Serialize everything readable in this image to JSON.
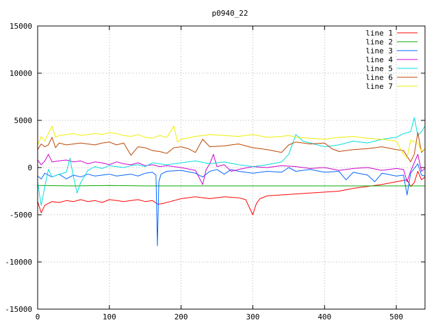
{
  "chart_data": {
    "type": "line",
    "title": "p0940_22",
    "xlabel": "",
    "ylabel": "",
    "xlim": [
      0,
      540
    ],
    "ylim": [
      -15000,
      15000
    ],
    "xticks": [
      0,
      100,
      200,
      300,
      400,
      500
    ],
    "yticks": [
      -15000,
      -10000,
      -5000,
      0,
      5000,
      10000,
      15000
    ],
    "grid": true,
    "legend_position": "top-right",
    "series": [
      {
        "name": "line 1",
        "color": "#ff0000",
        "points": [
          [
            0,
            -3600
          ],
          [
            5,
            -4800
          ],
          [
            10,
            -4000
          ],
          [
            20,
            -3600
          ],
          [
            30,
            -3700
          ],
          [
            40,
            -3500
          ],
          [
            50,
            -3600
          ],
          [
            60,
            -3400
          ],
          [
            70,
            -3600
          ],
          [
            80,
            -3500
          ],
          [
            90,
            -3700
          ],
          [
            100,
            -3400
          ],
          [
            110,
            -3500
          ],
          [
            120,
            -3600
          ],
          [
            130,
            -3500
          ],
          [
            140,
            -3400
          ],
          [
            150,
            -3600
          ],
          [
            160,
            -3500
          ],
          [
            168,
            -3900
          ],
          [
            175,
            -3800
          ],
          [
            185,
            -3600
          ],
          [
            200,
            -3300
          ],
          [
            220,
            -3100
          ],
          [
            240,
            -3300
          ],
          [
            260,
            -3100
          ],
          [
            280,
            -3200
          ],
          [
            290,
            -3400
          ],
          [
            295,
            -4200
          ],
          [
            300,
            -5000
          ],
          [
            305,
            -3800
          ],
          [
            310,
            -3300
          ],
          [
            320,
            -3000
          ],
          [
            340,
            -2900
          ],
          [
            360,
            -2800
          ],
          [
            380,
            -2700
          ],
          [
            400,
            -2600
          ],
          [
            420,
            -2500
          ],
          [
            440,
            -2200
          ],
          [
            460,
            -2000
          ],
          [
            480,
            -1800
          ],
          [
            500,
            -1500
          ],
          [
            515,
            -1300
          ],
          [
            520,
            -2000
          ],
          [
            525,
            -1600
          ],
          [
            530,
            -400
          ],
          [
            535,
            -1300
          ],
          [
            540,
            -1000
          ]
        ]
      },
      {
        "name": "line 2",
        "color": "#00aa00",
        "points": [
          [
            0,
            -1900
          ],
          [
            50,
            -1950
          ],
          [
            100,
            -1900
          ],
          [
            150,
            -1950
          ],
          [
            200,
            -1950
          ],
          [
            250,
            -1950
          ],
          [
            300,
            -1950
          ],
          [
            350,
            -1950
          ],
          [
            400,
            -1950
          ],
          [
            450,
            -1950
          ],
          [
            500,
            -1950
          ],
          [
            540,
            -1950
          ]
        ]
      },
      {
        "name": "line 3",
        "color": "#0066ff",
        "points": [
          [
            0,
            -900
          ],
          [
            5,
            -1200
          ],
          [
            10,
            -600
          ],
          [
            20,
            -1000
          ],
          [
            30,
            -700
          ],
          [
            40,
            -1200
          ],
          [
            50,
            -800
          ],
          [
            60,
            -1000
          ],
          [
            70,
            -700
          ],
          [
            80,
            -900
          ],
          [
            90,
            -800
          ],
          [
            100,
            -700
          ],
          [
            110,
            -900
          ],
          [
            120,
            -800
          ],
          [
            130,
            -700
          ],
          [
            140,
            -900
          ],
          [
            150,
            -600
          ],
          [
            160,
            -500
          ],
          [
            165,
            -800
          ],
          [
            167,
            -8300
          ],
          [
            169,
            -1500
          ],
          [
            172,
            -700
          ],
          [
            180,
            -400
          ],
          [
            200,
            -300
          ],
          [
            220,
            -600
          ],
          [
            230,
            -1000
          ],
          [
            240,
            -400
          ],
          [
            250,
            -200
          ],
          [
            260,
            -700
          ],
          [
            270,
            -200
          ],
          [
            280,
            -400
          ],
          [
            300,
            -600
          ],
          [
            320,
            -400
          ],
          [
            340,
            -500
          ],
          [
            350,
            0
          ],
          [
            360,
            -400
          ],
          [
            380,
            -200
          ],
          [
            400,
            -500
          ],
          [
            420,
            -400
          ],
          [
            430,
            -1300
          ],
          [
            440,
            -500
          ],
          [
            460,
            -800
          ],
          [
            470,
            -1500
          ],
          [
            480,
            -600
          ],
          [
            500,
            -900
          ],
          [
            510,
            -800
          ],
          [
            515,
            -2900
          ],
          [
            520,
            -600
          ],
          [
            530,
            400
          ],
          [
            535,
            -800
          ],
          [
            540,
            -900
          ]
        ]
      },
      {
        "name": "line 4",
        "color": "#cc00cc",
        "points": [
          [
            0,
            800
          ],
          [
            5,
            300
          ],
          [
            10,
            700
          ],
          [
            15,
            1400
          ],
          [
            20,
            600
          ],
          [
            30,
            700
          ],
          [
            40,
            800
          ],
          [
            50,
            600
          ],
          [
            60,
            700
          ],
          [
            70,
            400
          ],
          [
            80,
            600
          ],
          [
            90,
            500
          ],
          [
            100,
            300
          ],
          [
            110,
            600
          ],
          [
            120,
            400
          ],
          [
            130,
            300
          ],
          [
            140,
            500
          ],
          [
            150,
            200
          ],
          [
            160,
            300
          ],
          [
            170,
            100
          ],
          [
            180,
            200
          ],
          [
            200,
            0
          ],
          [
            220,
            -300
          ],
          [
            230,
            -1800
          ],
          [
            235,
            -200
          ],
          [
            240,
            400
          ],
          [
            245,
            1400
          ],
          [
            250,
            100
          ],
          [
            260,
            300
          ],
          [
            270,
            -400
          ],
          [
            280,
            -200
          ],
          [
            300,
            100
          ],
          [
            320,
            0
          ],
          [
            340,
            200
          ],
          [
            360,
            100
          ],
          [
            380,
            -100
          ],
          [
            400,
            0
          ],
          [
            420,
            -300
          ],
          [
            430,
            -200
          ],
          [
            440,
            -100
          ],
          [
            460,
            0
          ],
          [
            480,
            -300
          ],
          [
            500,
            -100
          ],
          [
            510,
            -200
          ],
          [
            515,
            -1500
          ],
          [
            520,
            -400
          ],
          [
            530,
            1400
          ],
          [
            535,
            -400
          ],
          [
            540,
            -100
          ]
        ]
      },
      {
        "name": "line 5",
        "color": "#00dddd",
        "points": [
          [
            0,
            -1600
          ],
          [
            5,
            -4000
          ],
          [
            10,
            -2000
          ],
          [
            15,
            -200
          ],
          [
            20,
            -1000
          ],
          [
            30,
            -700
          ],
          [
            40,
            -500
          ],
          [
            45,
            1000
          ],
          [
            50,
            -1000
          ],
          [
            55,
            -2700
          ],
          [
            60,
            -1600
          ],
          [
            70,
            -300
          ],
          [
            80,
            100
          ],
          [
            90,
            -100
          ],
          [
            100,
            200
          ],
          [
            110,
            100
          ],
          [
            120,
            0
          ],
          [
            130,
            200
          ],
          [
            140,
            300
          ],
          [
            150,
            100
          ],
          [
            160,
            500
          ],
          [
            170,
            400
          ],
          [
            180,
            300
          ],
          [
            200,
            500
          ],
          [
            220,
            700
          ],
          [
            240,
            400
          ],
          [
            260,
            600
          ],
          [
            280,
            300
          ],
          [
            300,
            100
          ],
          [
            320,
            300
          ],
          [
            340,
            600
          ],
          [
            350,
            1400
          ],
          [
            360,
            3500
          ],
          [
            370,
            2800
          ],
          [
            380,
            2600
          ],
          [
            400,
            2200
          ],
          [
            420,
            2400
          ],
          [
            440,
            2800
          ],
          [
            460,
            2600
          ],
          [
            480,
            3000
          ],
          [
            500,
            3200
          ],
          [
            510,
            3600
          ],
          [
            520,
            3800
          ],
          [
            525,
            5300
          ],
          [
            530,
            3400
          ],
          [
            535,
            3800
          ],
          [
            540,
            4400
          ]
        ]
      },
      {
        "name": "line 6",
        "color": "#bb4400",
        "points": [
          [
            0,
            1900
          ],
          [
            5,
            2500
          ],
          [
            10,
            2200
          ],
          [
            15,
            2400
          ],
          [
            20,
            3200
          ],
          [
            25,
            2100
          ],
          [
            30,
            2600
          ],
          [
            40,
            2400
          ],
          [
            50,
            2500
          ],
          [
            60,
            2600
          ],
          [
            70,
            2500
          ],
          [
            80,
            2400
          ],
          [
            90,
            2600
          ],
          [
            100,
            2700
          ],
          [
            110,
            2400
          ],
          [
            120,
            2600
          ],
          [
            130,
            1300
          ],
          [
            140,
            2200
          ],
          [
            150,
            2100
          ],
          [
            160,
            1800
          ],
          [
            170,
            1700
          ],
          [
            180,
            1500
          ],
          [
            190,
            2100
          ],
          [
            200,
            2200
          ],
          [
            210,
            2000
          ],
          [
            220,
            1600
          ],
          [
            230,
            3000
          ],
          [
            240,
            2200
          ],
          [
            260,
            2300
          ],
          [
            280,
            2500
          ],
          [
            300,
            2100
          ],
          [
            320,
            1900
          ],
          [
            340,
            1600
          ],
          [
            350,
            2400
          ],
          [
            360,
            2700
          ],
          [
            380,
            2500
          ],
          [
            400,
            2600
          ],
          [
            410,
            2000
          ],
          [
            420,
            1700
          ],
          [
            440,
            1900
          ],
          [
            460,
            2000
          ],
          [
            480,
            2200
          ],
          [
            500,
            1900
          ],
          [
            510,
            1800
          ],
          [
            520,
            600
          ],
          [
            525,
            1400
          ],
          [
            530,
            3700
          ],
          [
            535,
            1600
          ],
          [
            540,
            2000
          ]
        ]
      },
      {
        "name": "line 7",
        "color": "#eeee00",
        "points": [
          [
            0,
            2400
          ],
          [
            5,
            3300
          ],
          [
            10,
            2800
          ],
          [
            15,
            3600
          ],
          [
            20,
            4400
          ],
          [
            25,
            3200
          ],
          [
            30,
            3400
          ],
          [
            40,
            3500
          ],
          [
            50,
            3600
          ],
          [
            60,
            3400
          ],
          [
            70,
            3500
          ],
          [
            80,
            3600
          ],
          [
            90,
            3500
          ],
          [
            100,
            3700
          ],
          [
            110,
            3600
          ],
          [
            120,
            3400
          ],
          [
            130,
            3300
          ],
          [
            140,
            3500
          ],
          [
            150,
            3200
          ],
          [
            160,
            3100
          ],
          [
            170,
            3400
          ],
          [
            180,
            3200
          ],
          [
            190,
            4400
          ],
          [
            195,
            2700
          ],
          [
            200,
            3000
          ],
          [
            220,
            3300
          ],
          [
            240,
            3500
          ],
          [
            260,
            3400
          ],
          [
            280,
            3300
          ],
          [
            300,
            3500
          ],
          [
            320,
            3200
          ],
          [
            340,
            3300
          ],
          [
            350,
            3400
          ],
          [
            360,
            3200
          ],
          [
            380,
            3100
          ],
          [
            400,
            3000
          ],
          [
            420,
            3200
          ],
          [
            440,
            3300
          ],
          [
            460,
            3100
          ],
          [
            480,
            3000
          ],
          [
            500,
            2800
          ],
          [
            510,
            1400
          ],
          [
            515,
            1000
          ],
          [
            520,
            2900
          ],
          [
            530,
            2600
          ],
          [
            535,
            1700
          ],
          [
            540,
            2000
          ]
        ]
      }
    ]
  }
}
